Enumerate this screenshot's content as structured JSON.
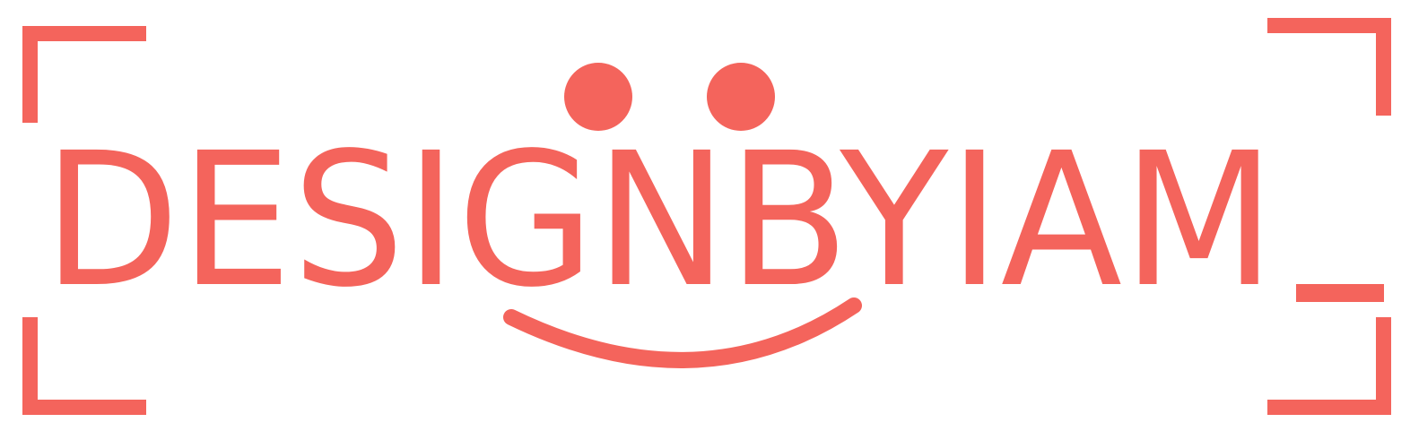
{
  "logo": {
    "text": "DESIGNBYIAM"
  }
}
